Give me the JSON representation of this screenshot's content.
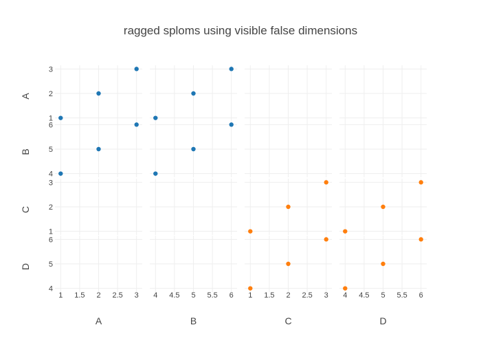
{
  "chart_data": {
    "type": "splom",
    "title": "ragged sploms using visible false dimensions",
    "dimensions": [
      "A",
      "B",
      "C",
      "D"
    ],
    "panels": {
      "A": {
        "range": [
          0.85,
          3.15
        ],
        "ticks": [
          1,
          2,
          3
        ],
        "bottom_ticks": [
          "1",
          "1.5",
          "2",
          "2.5",
          "3"
        ],
        "bottom_tick_values": [
          1,
          1.5,
          2,
          2.5,
          3
        ]
      },
      "B": {
        "range": [
          3.85,
          6.15
        ],
        "ticks": [
          4,
          5,
          6
        ],
        "bottom_ticks": [
          "4",
          "4.5",
          "5",
          "5.5",
          "6"
        ],
        "bottom_tick_values": [
          4,
          4.5,
          5,
          5.5,
          6
        ]
      },
      "C": {
        "range": [
          0.85,
          3.15
        ],
        "ticks": [
          1,
          2,
          3
        ],
        "bottom_ticks": [
          "1",
          "1.5",
          "2",
          "2.5",
          "3"
        ],
        "bottom_tick_values": [
          1,
          1.5,
          2,
          2.5,
          3
        ]
      },
      "D": {
        "range": [
          3.85,
          6.15
        ],
        "ticks": [
          4,
          5,
          6
        ],
        "bottom_ticks": [
          "4",
          "4.5",
          "5",
          "5.5",
          "6"
        ],
        "bottom_tick_values": [
          4,
          4.5,
          5,
          5.5,
          6
        ]
      }
    },
    "series": [
      {
        "dimensions": [
          "A",
          "B"
        ],
        "color": "#1f77b4",
        "points": [
          {
            "A": 1,
            "B": 4
          },
          {
            "A": 2,
            "B": 5
          },
          {
            "A": 3,
            "B": 6
          }
        ]
      },
      {
        "dimensions": [
          "C",
          "D"
        ],
        "color": "#ff7f0e",
        "points": [
          {
            "C": 1,
            "D": 4
          },
          {
            "C": 2,
            "D": 5
          },
          {
            "C": 3,
            "D": 6
          }
        ]
      }
    ],
    "grid": true,
    "legend": "none"
  }
}
